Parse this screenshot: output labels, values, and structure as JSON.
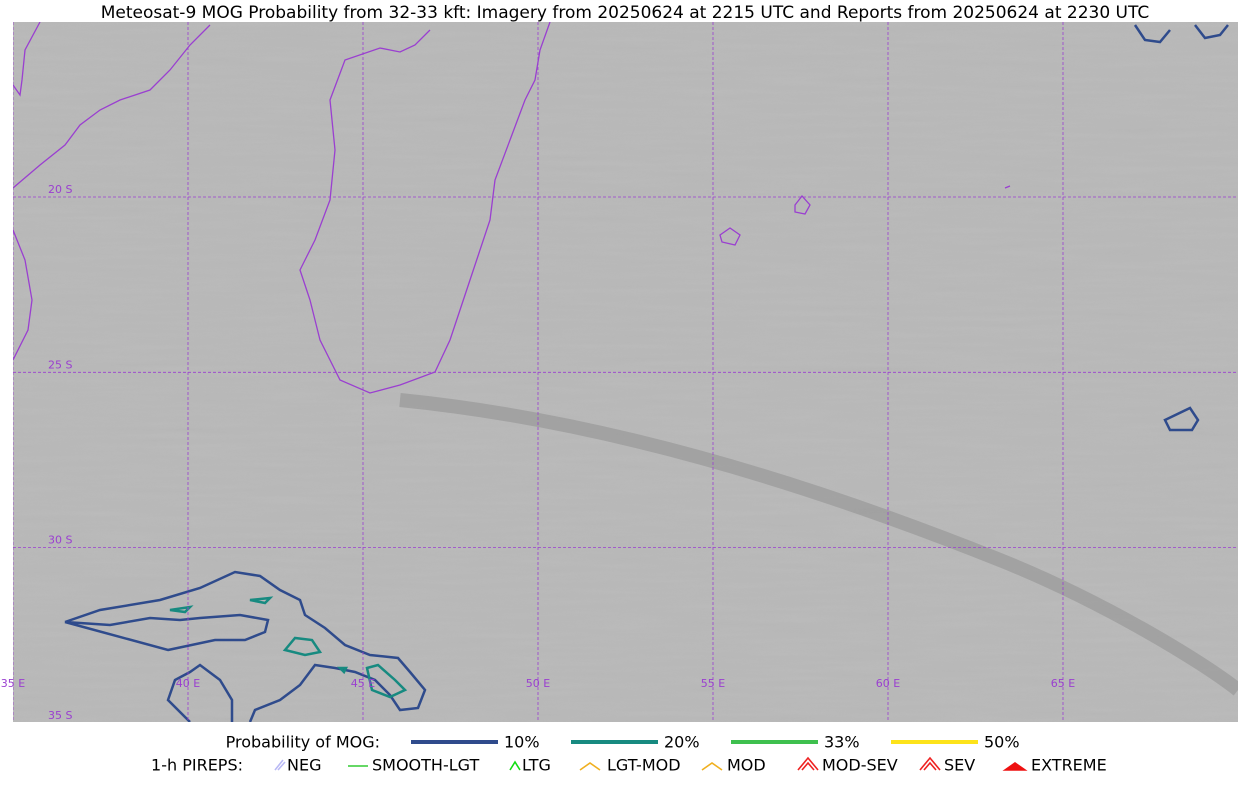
{
  "title": "Meteosat-9 MOG Probability from 32-33 kft: Imagery from 20250624 at 2215 UTC and Reports from 20250624 at 2230 UTC",
  "map": {
    "lat_labels": [
      "20 S",
      "25 S",
      "30 S",
      "35 S"
    ],
    "lon_labels": [
      "35 E",
      "40 E",
      "45 E",
      "50 E",
      "55 E",
      "60 E",
      "65 E"
    ]
  },
  "legend": {
    "probability_label": "Probability of MOG:",
    "probability_items": [
      {
        "name": "10%",
        "color": "#2f4b8c"
      },
      {
        "name": "20%",
        "color": "#178a80"
      },
      {
        "name": "33%",
        "color": "#3ec04e"
      },
      {
        "name": "50%",
        "color": "#fde31a"
      }
    ],
    "pireps_label": "1-h PIREPS:",
    "pireps_items": [
      {
        "name": "NEG",
        "color": "#b9b9f5"
      },
      {
        "name": "SMOOTH-LGT",
        "color": "#33cc33"
      },
      {
        "name": "LTG",
        "color": "#11dd11"
      },
      {
        "name": "LGT-MOD",
        "color": "#f0b020"
      },
      {
        "name": "MOD",
        "color": "#f0b020"
      },
      {
        "name": "MOD-SEV",
        "color": "#ee2222"
      },
      {
        "name": "SEV",
        "color": "#ee2222"
      },
      {
        "name": "EXTREME",
        "color": "#ee1111"
      }
    ]
  }
}
